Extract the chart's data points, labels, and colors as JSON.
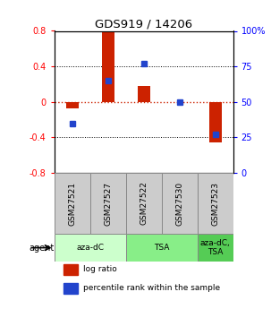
{
  "title": "GDS919 / 14206",
  "samples": [
    "GSM27521",
    "GSM27527",
    "GSM27522",
    "GSM27530",
    "GSM27523"
  ],
  "log_ratio": [
    -0.07,
    0.8,
    0.18,
    0.0,
    -0.46
  ],
  "percentile_rank": [
    35,
    65,
    77,
    50,
    27
  ],
  "ylim_left": [
    -0.8,
    0.8
  ],
  "ylim_right": [
    0,
    100
  ],
  "yticks_left": [
    -0.8,
    -0.4,
    0,
    0.4,
    0.8
  ],
  "yticks_right": [
    0,
    25,
    50,
    75,
    100
  ],
  "ytick_labels_right": [
    "0",
    "25",
    "50",
    "75",
    "100%"
  ],
  "bar_color": "#cc2200",
  "dot_color": "#2244cc",
  "agent_groups": [
    {
      "label": "aza-dC",
      "span": [
        0,
        2
      ],
      "color": "#ccffcc"
    },
    {
      "label": "TSA",
      "span": [
        2,
        4
      ],
      "color": "#88ee88"
    },
    {
      "label": "aza-dC,\nTSA",
      "span": [
        4,
        5
      ],
      "color": "#55cc55"
    }
  ],
  "legend_items": [
    {
      "color": "#cc2200",
      "label": "log ratio"
    },
    {
      "color": "#2244cc",
      "label": "percentile rank within the sample"
    }
  ],
  "bar_width": 0.35,
  "dot_size": 30,
  "hline_color": "#cc2200",
  "grid_color": "black"
}
